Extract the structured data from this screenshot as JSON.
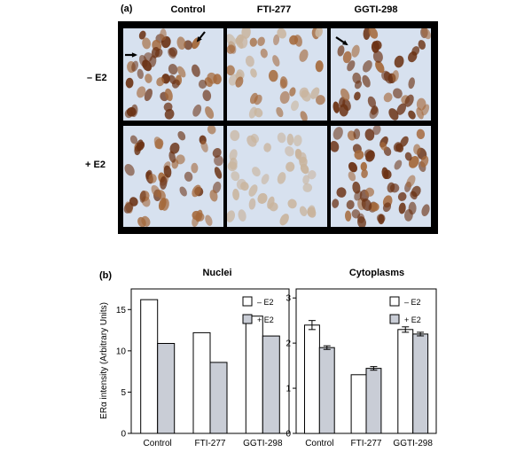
{
  "figure_a": {
    "label": "(a)",
    "columns": [
      "Control",
      "FTI-277",
      "GGTI-298"
    ],
    "rows": [
      "– E2",
      "+ E2"
    ],
    "colors": {
      "background": "#d7e1ef",
      "nucleus_dark": "#6b3214",
      "nucleus_mid": "#a4683a",
      "nucleus_light": "#c9b49d"
    }
  },
  "figure_b": {
    "label": "(b)",
    "ylabel": "ERα intensity (Arbitrary Units)"
  },
  "chart_data": [
    {
      "type": "bar",
      "title": "Nuclei",
      "categories": [
        "Control",
        "FTI-277",
        "GGTI-298"
      ],
      "series": [
        {
          "name": "– E2",
          "values": [
            16.2,
            12.2,
            14.2
          ],
          "color": "#ffffff"
        },
        {
          "name": "+ E2",
          "values": [
            10.9,
            8.6,
            11.8
          ],
          "color": "#c9cdd6"
        }
      ],
      "ylim": [
        0,
        17.5
      ],
      "yticks": [
        0,
        5,
        10,
        15
      ],
      "legend": "top-right",
      "error_bars": false
    },
    {
      "type": "bar",
      "title": "Cytoplasms",
      "categories": [
        "Control",
        "FTI-277",
        "GGTI-298"
      ],
      "series": [
        {
          "name": "– E2",
          "values": [
            2.4,
            1.3,
            2.3
          ],
          "errors": [
            0.1,
            0.0,
            0.06
          ],
          "color": "#ffffff"
        },
        {
          "name": "+ E2",
          "values": [
            1.9,
            1.44,
            2.2
          ],
          "errors": [
            0.04,
            0.04,
            0.04
          ],
          "color": "#c9cdd6"
        }
      ],
      "ylim": [
        0,
        3.2
      ],
      "yticks": [
        0,
        1,
        2,
        3
      ],
      "legend": "top-right",
      "error_bars": true
    }
  ]
}
